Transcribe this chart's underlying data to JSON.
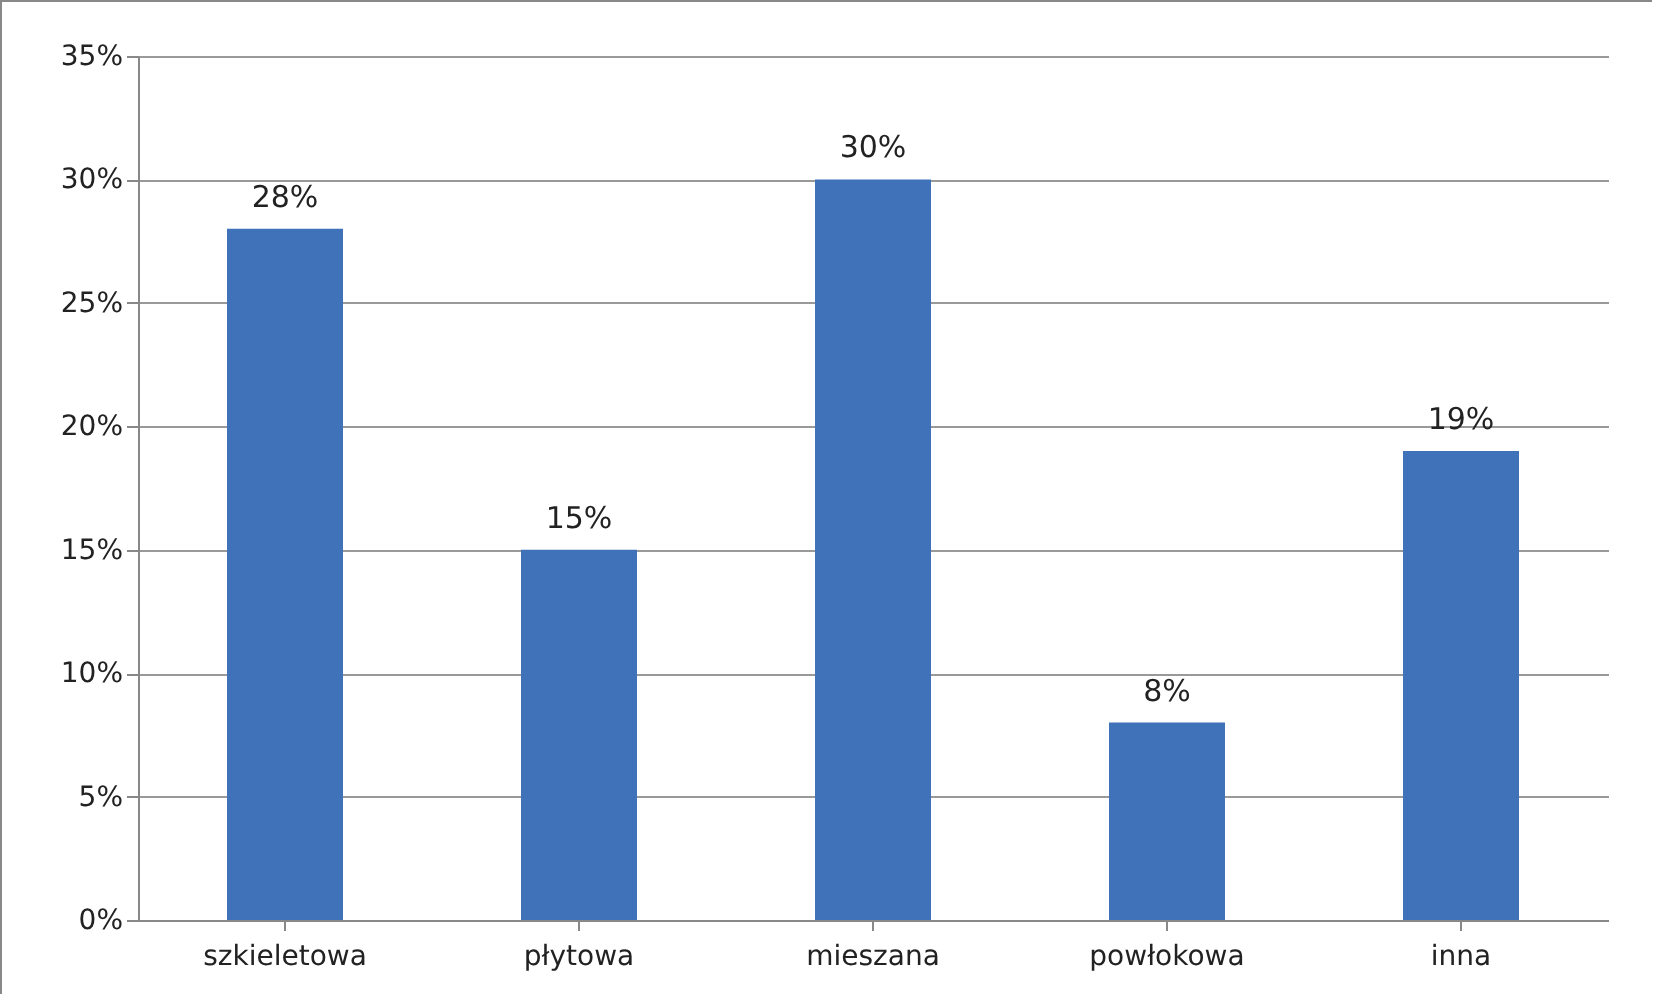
{
  "chart_data": {
    "type": "bar",
    "categories": [
      "szkieletowa",
      "płytowa",
      "mieszana",
      "powłokowa",
      "inna"
    ],
    "values": [
      28,
      15,
      30,
      8,
      19
    ],
    "color": "#3f72b8",
    "value_labels": [
      "28%",
      "15%",
      "30%",
      "8%",
      "19%"
    ],
    "ylim": [
      0,
      35
    ],
    "yticks": [
      {
        "value": 0,
        "label": "0%"
      },
      {
        "value": 5,
        "label": "5%"
      },
      {
        "value": 10,
        "label": "10%"
      },
      {
        "value": 15,
        "label": "15%"
      },
      {
        "value": 20,
        "label": "20%"
      },
      {
        "value": 25,
        "label": "25%"
      },
      {
        "value": 30,
        "label": "30%"
      },
      {
        "value": 35,
        "label": "35%"
      }
    ],
    "grid": "y"
  }
}
